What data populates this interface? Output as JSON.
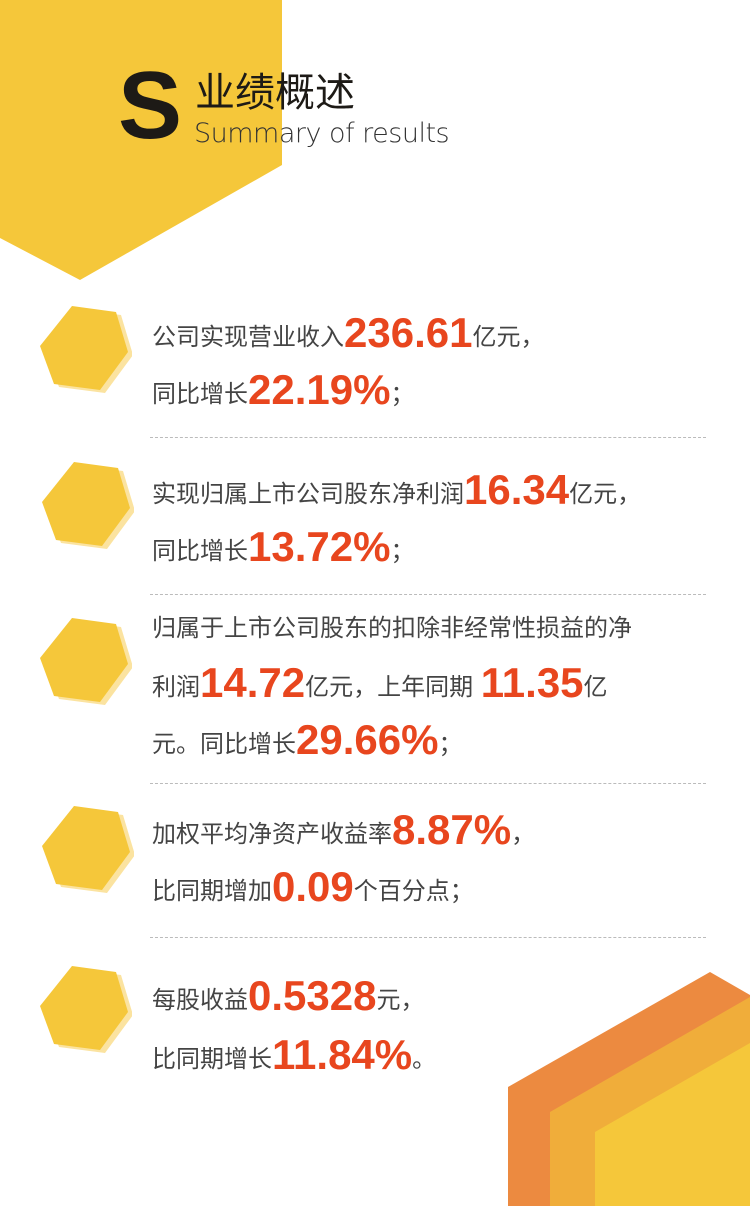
{
  "header": {
    "letter": "S",
    "title": "业绩概述",
    "subtitle": "Summary of results"
  },
  "colors": {
    "yellow": "#f5c73a",
    "orange": "#ec8a40",
    "amber": "#f0ad3a",
    "highlight": "#e8461e",
    "text": "#444444"
  },
  "items": [
    {
      "lines": [
        [
          "公司实现营业收入",
          "236.61",
          "亿元，"
        ],
        [
          "同比增长",
          "22.19%",
          "；"
        ]
      ]
    },
    {
      "lines": [
        [
          "实现归属上市公司股东净利润",
          "16.34",
          "亿元，"
        ],
        [
          "同比增长",
          "13.72%",
          "；"
        ]
      ]
    },
    {
      "lines": [
        [
          "归属于上市公司股东的扣除非经常性损益的净"
        ],
        [
          "利润",
          "14.72",
          "亿元，上年同期 ",
          "11.35",
          "亿"
        ],
        [
          "元。同比增长",
          "29.66%",
          "；"
        ]
      ]
    },
    {
      "lines": [
        [
          "加权平均净资产收益率",
          "8.87%",
          "，"
        ],
        [
          "比同期增加",
          "0.09",
          "个百分点；"
        ]
      ]
    },
    {
      "lines": [
        [
          "每股收益",
          "0.5328",
          "元，"
        ],
        [
          "比同期增长",
          "11.84%",
          "。"
        ]
      ]
    }
  ]
}
